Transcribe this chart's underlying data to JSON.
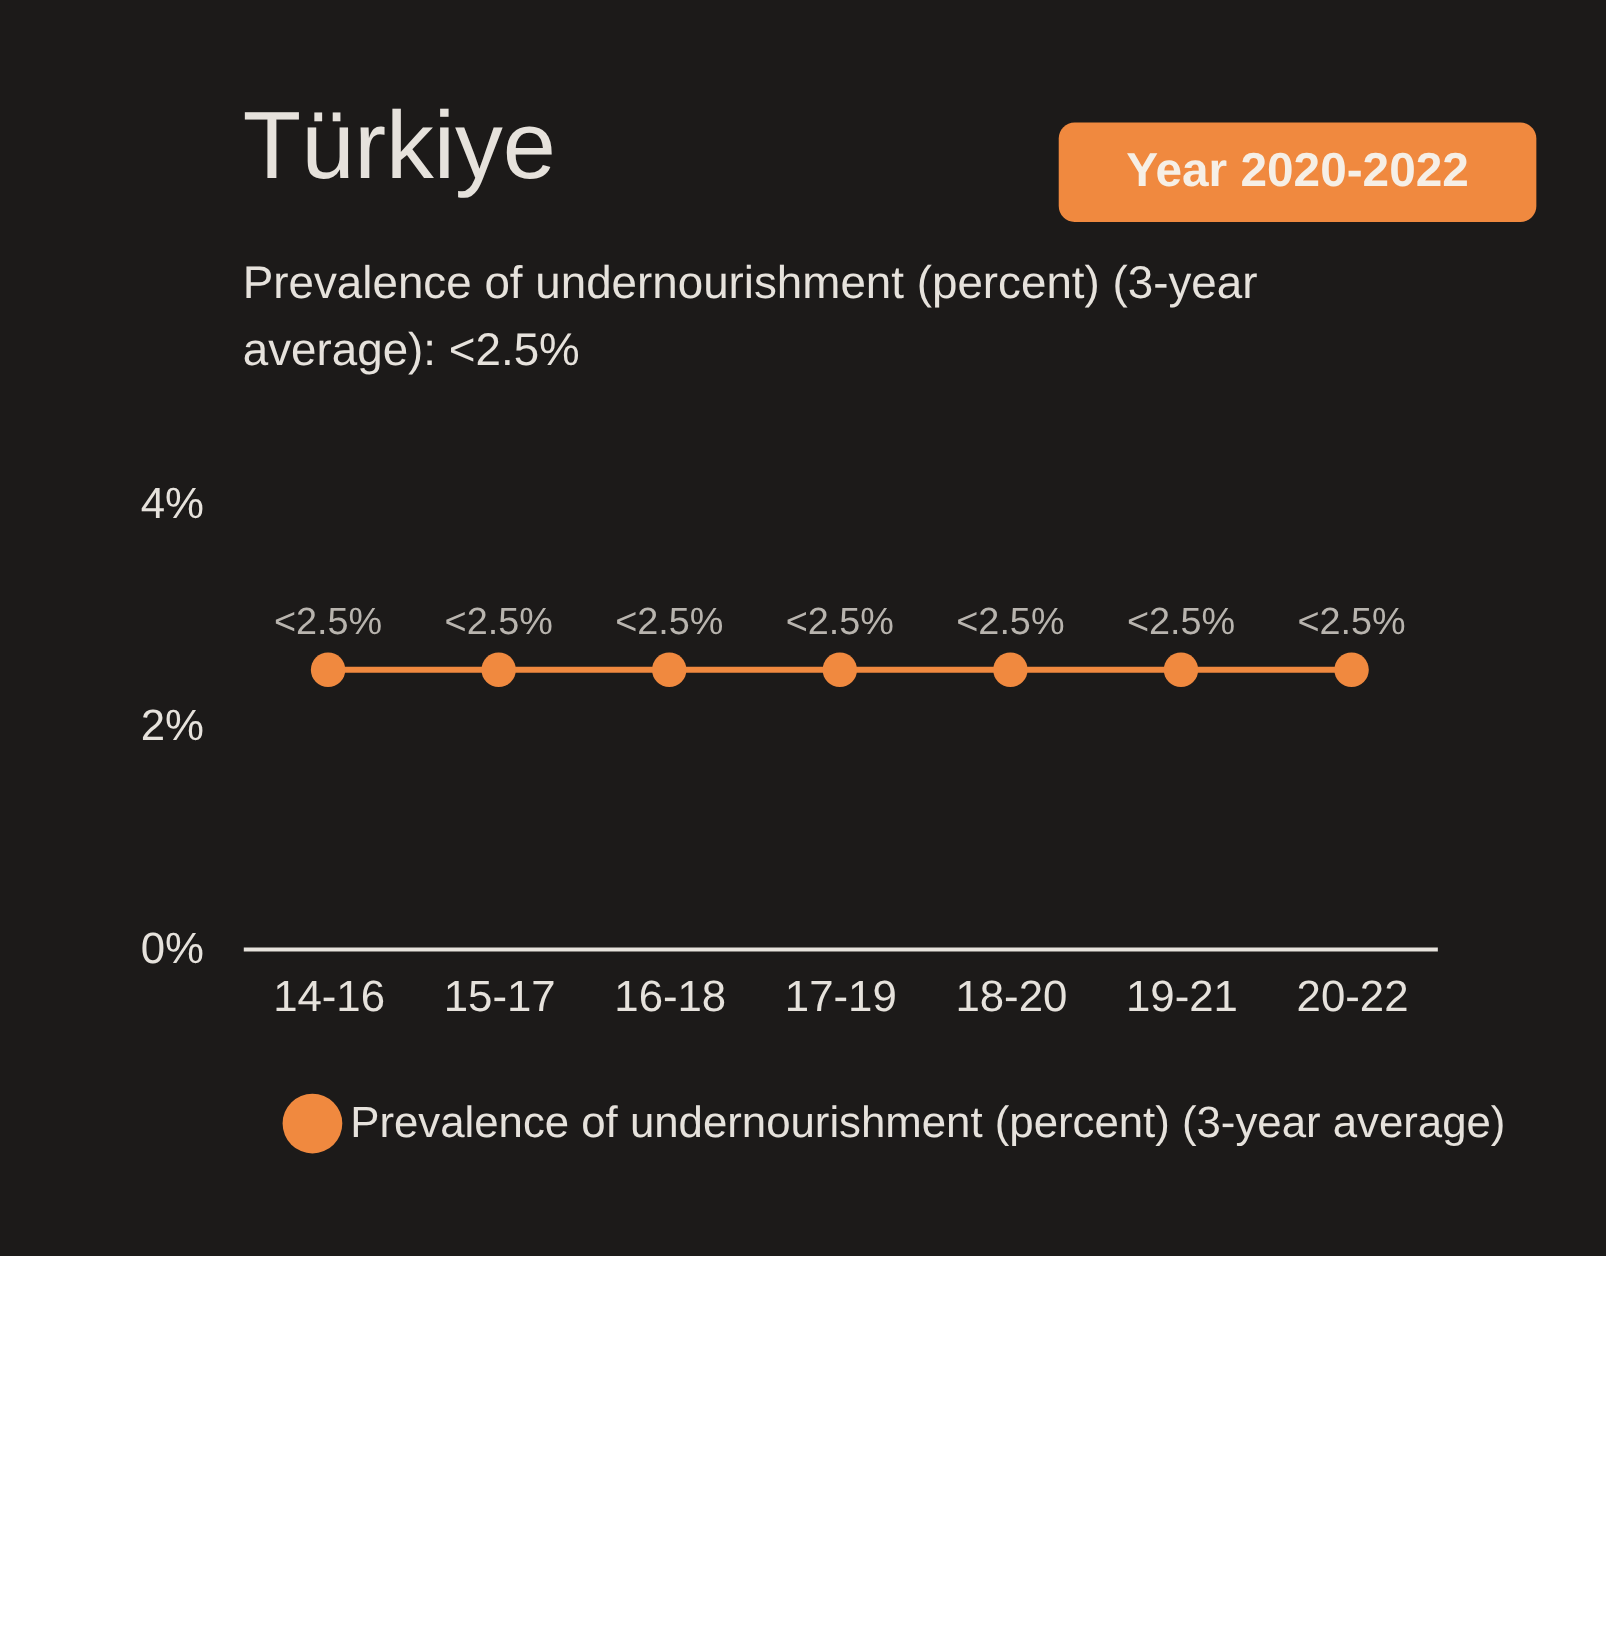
{
  "chart_data": {
    "type": "line",
    "title": "Türkiye",
    "subtitle": "Prevalence of undernourishment (percent) (3-year average): <2.5%",
    "annotations": [
      "Year 2020-2022"
    ],
    "categories": [
      "14-16",
      "15-17",
      "16-18",
      "17-19",
      "18-20",
      "19-21",
      "20-22"
    ],
    "series": [
      {
        "name": "Prevalence of undernourishment (percent) (3-year average)",
        "color": "#f0893f",
        "values": [
          2.5,
          2.5,
          2.5,
          2.5,
          2.5,
          2.5,
          2.5
        ],
        "value_labels": [
          "<2.5%",
          "<2.5%",
          "<2.5%",
          "<2.5%",
          "<2.5%",
          "<2.5%",
          "<2.5%"
        ]
      }
    ],
    "ylim": [
      0,
      4
    ],
    "yticks": [
      {
        "value": 0,
        "label": "0%"
      },
      {
        "value": 2,
        "label": "2%"
      },
      {
        "value": 4,
        "label": "4%"
      }
    ],
    "grid": false,
    "legend": "bottom",
    "marker": "circle",
    "line_style": "solid"
  }
}
